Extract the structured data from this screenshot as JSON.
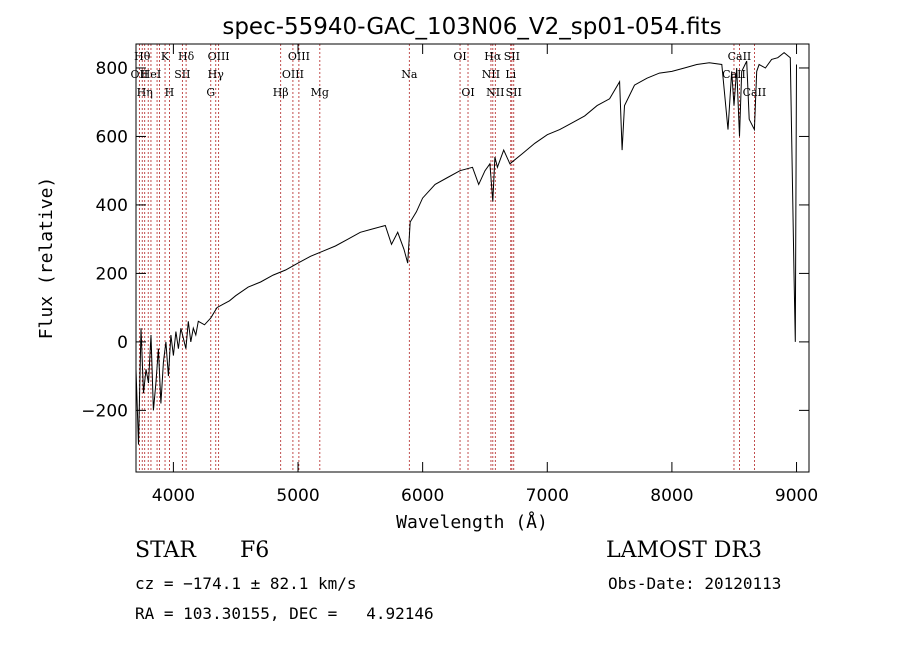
{
  "colors": {
    "axis": "#000000",
    "line_marker": "#b22222",
    "spectrum": "#000000"
  },
  "chart_data": {
    "type": "line",
    "title": "spec-55940-GAC_103N06_V2_sp01-054.fits",
    "xlabel": "Wavelength (Å)",
    "ylabel": "Flux (relative)",
    "xlim": [
      3700,
      9100
    ],
    "ylim": [
      -380,
      870
    ],
    "xticks": [
      4000,
      5000,
      6000,
      7000,
      8000,
      9000
    ],
    "yticks": [
      -200,
      0,
      200,
      400,
      600,
      800
    ],
    "series": [
      {
        "name": "spectrum",
        "x": [
          3700,
          3720,
          3740,
          3760,
          3780,
          3800,
          3820,
          3840,
          3860,
          3880,
          3900,
          3920,
          3940,
          3960,
          3980,
          4000,
          4020,
          4040,
          4060,
          4080,
          4100,
          4120,
          4140,
          4160,
          4180,
          4200,
          4250,
          4300,
          4350,
          4400,
          4450,
          4500,
          4600,
          4700,
          4800,
          4900,
          5000,
          5100,
          5200,
          5300,
          5400,
          5500,
          5600,
          5700,
          5750,
          5800,
          5850,
          5880,
          5900,
          5950,
          6000,
          6100,
          6200,
          6300,
          6400,
          6450,
          6500,
          6540,
          6563,
          6580,
          6600,
          6650,
          6700,
          6800,
          6900,
          7000,
          7100,
          7200,
          7300,
          7400,
          7500,
          7580,
          7600,
          7620,
          7700,
          7800,
          7900,
          8000,
          8100,
          8200,
          8300,
          8400,
          8450,
          8480,
          8498,
          8520,
          8542,
          8560,
          8600,
          8620,
          8662,
          8680,
          8700,
          8750,
          8800,
          8850,
          8900,
          8950,
          8980,
          8990,
          9000
        ],
        "y": [
          -80,
          -300,
          40,
          -150,
          -80,
          -120,
          20,
          -200,
          -120,
          -20,
          -180,
          -60,
          0,
          -100,
          20,
          -40,
          30,
          -20,
          40,
          10,
          -20,
          60,
          0,
          40,
          20,
          60,
          50,
          70,
          100,
          110,
          120,
          135,
          160,
          175,
          195,
          210,
          230,
          250,
          265,
          280,
          300,
          320,
          330,
          340,
          285,
          320,
          270,
          230,
          350,
          380,
          420,
          460,
          480,
          500,
          510,
          460,
          500,
          520,
          410,
          540,
          510,
          560,
          520,
          550,
          580,
          605,
          620,
          640,
          660,
          690,
          710,
          760,
          560,
          690,
          750,
          770,
          785,
          790,
          800,
          810,
          815,
          810,
          620,
          790,
          690,
          800,
          600,
          790,
          820,
          650,
          620,
          790,
          810,
          800,
          825,
          830,
          845,
          830,
          200,
          0,
          810
        ]
      }
    ],
    "line_markers": [
      {
        "wavelength": 3727,
        "label": "OII",
        "row": 1
      },
      {
        "wavelength": 3750,
        "label": "Hθ",
        "row": 0
      },
      {
        "wavelength": 3770,
        "label": "Hη",
        "row": 2
      },
      {
        "wavelength": 3798,
        "label": "",
        "row": 0
      },
      {
        "wavelength": 3820,
        "label": "HeI",
        "row": 1
      },
      {
        "wavelength": 3869,
        "label": "",
        "row": 0
      },
      {
        "wavelength": 3889,
        "label": "",
        "row": 0
      },
      {
        "wavelength": 3933,
        "label": "K",
        "row": 0
      },
      {
        "wavelength": 3968,
        "label": "H",
        "row": 2
      },
      {
        "wavelength": 4072,
        "label": "SII",
        "row": 1
      },
      {
        "wavelength": 4102,
        "label": "Hδ",
        "row": 0
      },
      {
        "wavelength": 4300,
        "label": "G",
        "row": 2
      },
      {
        "wavelength": 4340,
        "label": "Hγ",
        "row": 1
      },
      {
        "wavelength": 4363,
        "label": "OIII",
        "row": 0
      },
      {
        "wavelength": 4861,
        "label": "Hβ",
        "row": 2
      },
      {
        "wavelength": 4959,
        "label": "OIII",
        "row": 1
      },
      {
        "wavelength": 5007,
        "label": "OIII",
        "row": 0
      },
      {
        "wavelength": 5175,
        "label": "Mg",
        "row": 2
      },
      {
        "wavelength": 5893,
        "label": "Na",
        "row": 1
      },
      {
        "wavelength": 6300,
        "label": "OI",
        "row": 0
      },
      {
        "wavelength": 6364,
        "label": "OI",
        "row": 2
      },
      {
        "wavelength": 6548,
        "label": "NII",
        "row": 1
      },
      {
        "wavelength": 6563,
        "label": "Hα",
        "row": 0
      },
      {
        "wavelength": 6583,
        "label": "NII",
        "row": 2
      },
      {
        "wavelength": 6707,
        "label": "Li",
        "row": 1
      },
      {
        "wavelength": 6716,
        "label": "SII",
        "row": 0
      },
      {
        "wavelength": 6731,
        "label": "SII",
        "row": 2
      },
      {
        "wavelength": 8498,
        "label": "CaII",
        "row": 1
      },
      {
        "wavelength": 8542,
        "label": "CaII",
        "row": 0
      },
      {
        "wavelength": 8662,
        "label": "CaII",
        "row": 2
      }
    ]
  },
  "info": {
    "object_class": "STAR",
    "subclass": "F6",
    "survey": "LAMOST DR3",
    "cz": "cz = −174.1 ± 82.1 km/s",
    "obs_date": "Obs-Date: 20120113",
    "coords": "RA = 103.30155, DEC =   4.92146"
  }
}
